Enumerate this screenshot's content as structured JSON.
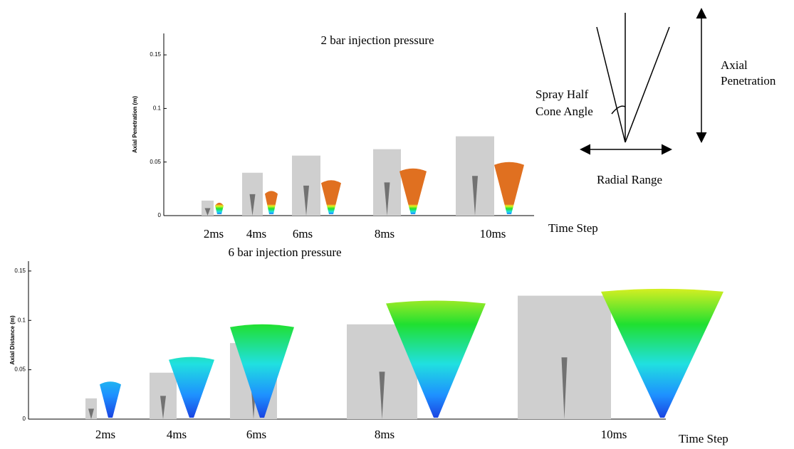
{
  "chart_data": [
    {
      "type": "bar",
      "title": "2 bar injection pressure",
      "y_label": "Axial Penetration (m)",
      "x_label": "Time Step",
      "categories": [
        "2ms",
        "4ms",
        "6ms",
        "8ms",
        "10ms"
      ],
      "series": [
        {
          "color": "#cfcfcf",
          "values": [
            0.014,
            0.04,
            0.056,
            0.062,
            0.074
          ]
        },
        {
          "color": "#1a3fe0",
          "values": [
            0.012,
            0.023,
            0.033,
            0.044,
            0.05
          ]
        }
      ],
      "ylim": [
        0,
        0.17
      ],
      "yticks": [
        0,
        0.05,
        0.1,
        0.15
      ]
    },
    {
      "type": "bar",
      "title": "6 bar injection pressure",
      "y_label": "Axial Distance (m)",
      "x_label": "Time Step",
      "categories": [
        "2ms",
        "4ms",
        "6ms",
        "8ms",
        "10ms"
      ],
      "series": [
        {
          "color": "#cfcfcf",
          "values": [
            0.021,
            0.047,
            0.077,
            0.096,
            0.125
          ]
        },
        {
          "color": "#1a3fe0",
          "values": [
            0.038,
            0.063,
            0.096,
            0.12,
            0.132
          ]
        }
      ],
      "ylim": [
        0,
        0.16
      ],
      "yticks": [
        0,
        0.05,
        0.1,
        0.15
      ]
    }
  ],
  "diagram": {
    "angle_label": [
      "Spray Half",
      "Cone Angle"
    ],
    "axial_label": [
      "Axial",
      "Penetration"
    ],
    "radial_label": "Radial Range"
  }
}
